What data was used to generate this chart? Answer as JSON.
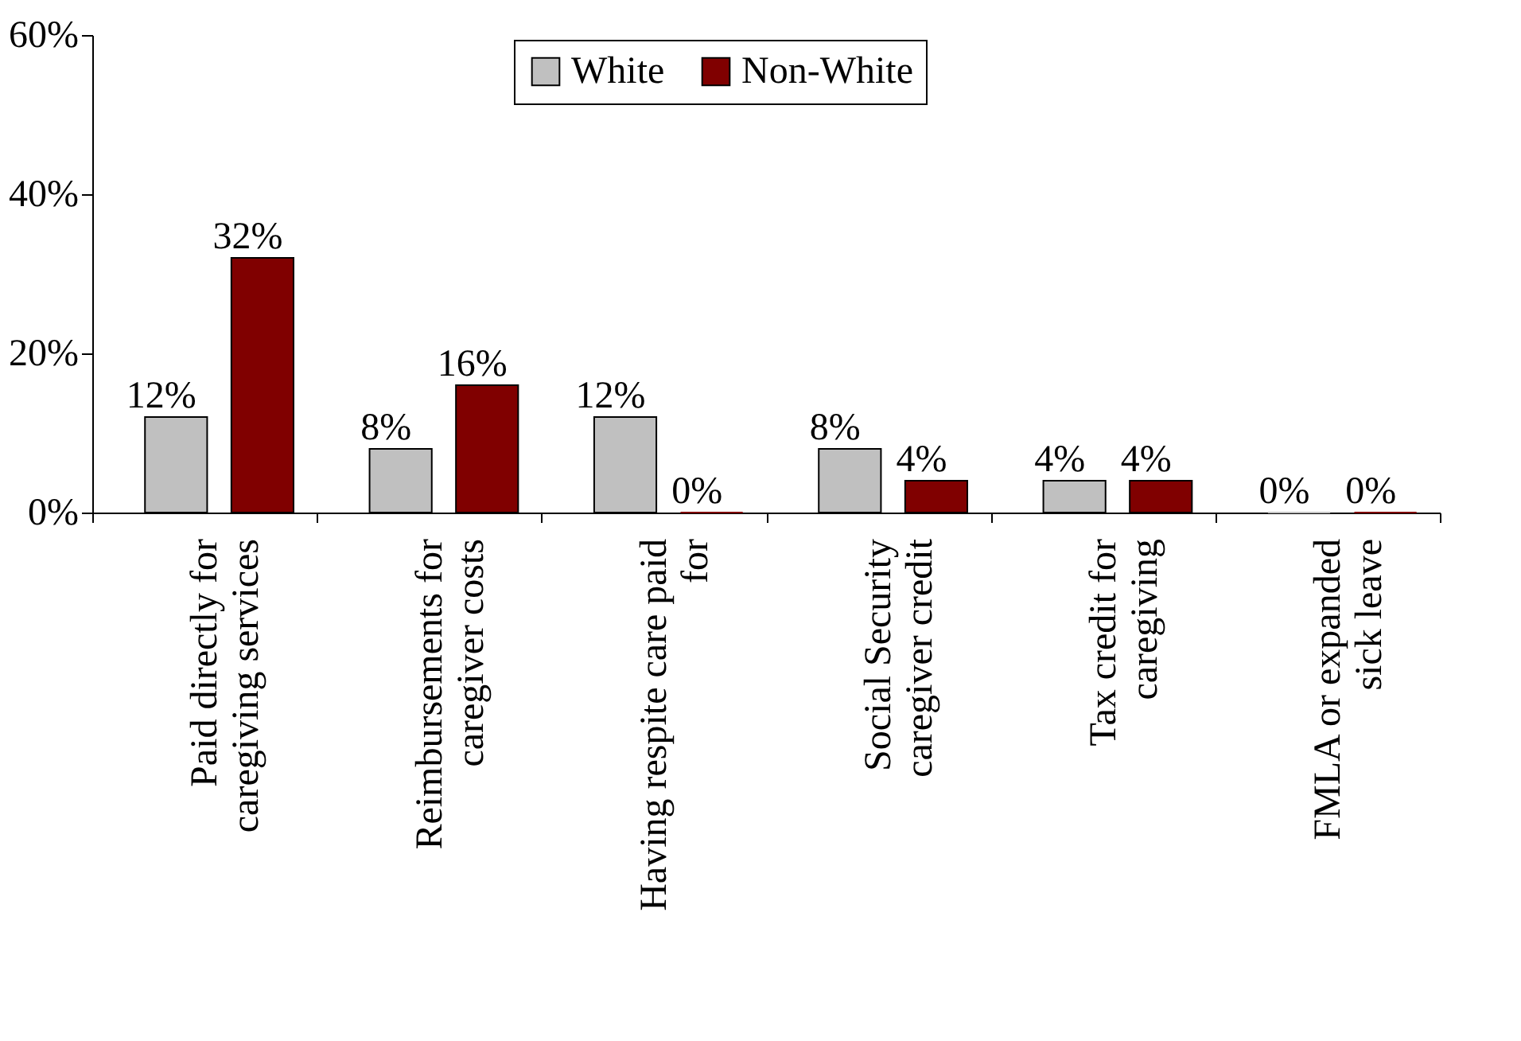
{
  "chart_data": {
    "type": "bar",
    "categories": [
      "Paid directly for\ncaregiving services",
      "Reimbursements for\ncaregiver costs",
      "Having respite care paid\nfor",
      "Social Security\ncaregiver credit",
      "Tax credit for\ncaregiving",
      "FMLA or expanded\nsick leave"
    ],
    "series": [
      {
        "name": "White",
        "color": "#c0c0c0",
        "values": [
          12,
          8,
          12,
          8,
          4,
          0
        ],
        "value_labels": [
          "12%",
          "8%",
          "12%",
          "8%",
          "4%",
          "0%"
        ]
      },
      {
        "name": "Non-White",
        "color": "#800000",
        "values": [
          32,
          16,
          0,
          4,
          4,
          0
        ],
        "value_labels": [
          "32%",
          "16%",
          "0%",
          "4%",
          "4%",
          "0%"
        ]
      }
    ],
    "ylim": [
      0,
      60
    ],
    "yticks": [
      {
        "value": 0,
        "label": "0%"
      },
      {
        "value": 20,
        "label": "20%"
      },
      {
        "value": 40,
        "label": "40%"
      },
      {
        "value": 60,
        "label": "60%"
      }
    ],
    "grid": false,
    "legend": "top"
  }
}
